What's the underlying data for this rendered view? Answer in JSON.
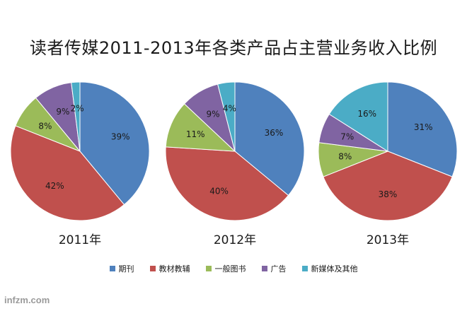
{
  "chart_data": [
    {
      "type": "pie",
      "categories": [
        "期刊",
        "教材教辅",
        "一般图书",
        "广告",
        "新媒体及其他"
      ],
      "values": [
        39,
        42,
        8,
        9,
        2
      ],
      "value_labels": [
        "39%",
        "42%",
        "8%",
        "9%",
        "2%"
      ],
      "xlabel": "2011年"
    },
    {
      "type": "pie",
      "categories": [
        "期刊",
        "教材教辅",
        "一般图书",
        "广告",
        "新媒体及其他"
      ],
      "values": [
        36,
        40,
        11,
        9,
        4
      ],
      "value_labels": [
        "36%",
        "40%",
        "11%",
        "9%",
        "4%"
      ],
      "xlabel": "2012年"
    },
    {
      "type": "pie",
      "categories": [
        "期刊",
        "教材教辅",
        "一般图书",
        "广告",
        "新媒体及其他"
      ],
      "values": [
        31,
        38,
        8,
        7,
        16
      ],
      "value_labels": [
        "31%",
        "38%",
        "8%",
        "7%",
        "16%"
      ],
      "xlabel": "2013年"
    }
  ],
  "title": "读者传媒2011-2013年各类产品占主营业务收入比例",
  "legend": {
    "placement": "bottom",
    "items": [
      {
        "label": "期刊",
        "color": "#4f81bd"
      },
      {
        "label": "教材教辅",
        "color": "#c0504d"
      },
      {
        "label": "一般图书",
        "color": "#9bbb59"
      },
      {
        "label": "广告",
        "color": "#8064a2"
      },
      {
        "label": "新媒体及其他",
        "color": "#4bacc6"
      }
    ]
  },
  "colors": [
    "#4f81bd",
    "#c0504d",
    "#9bbb59",
    "#8064a2",
    "#4bacc6"
  ],
  "watermark": "infzm.com"
}
